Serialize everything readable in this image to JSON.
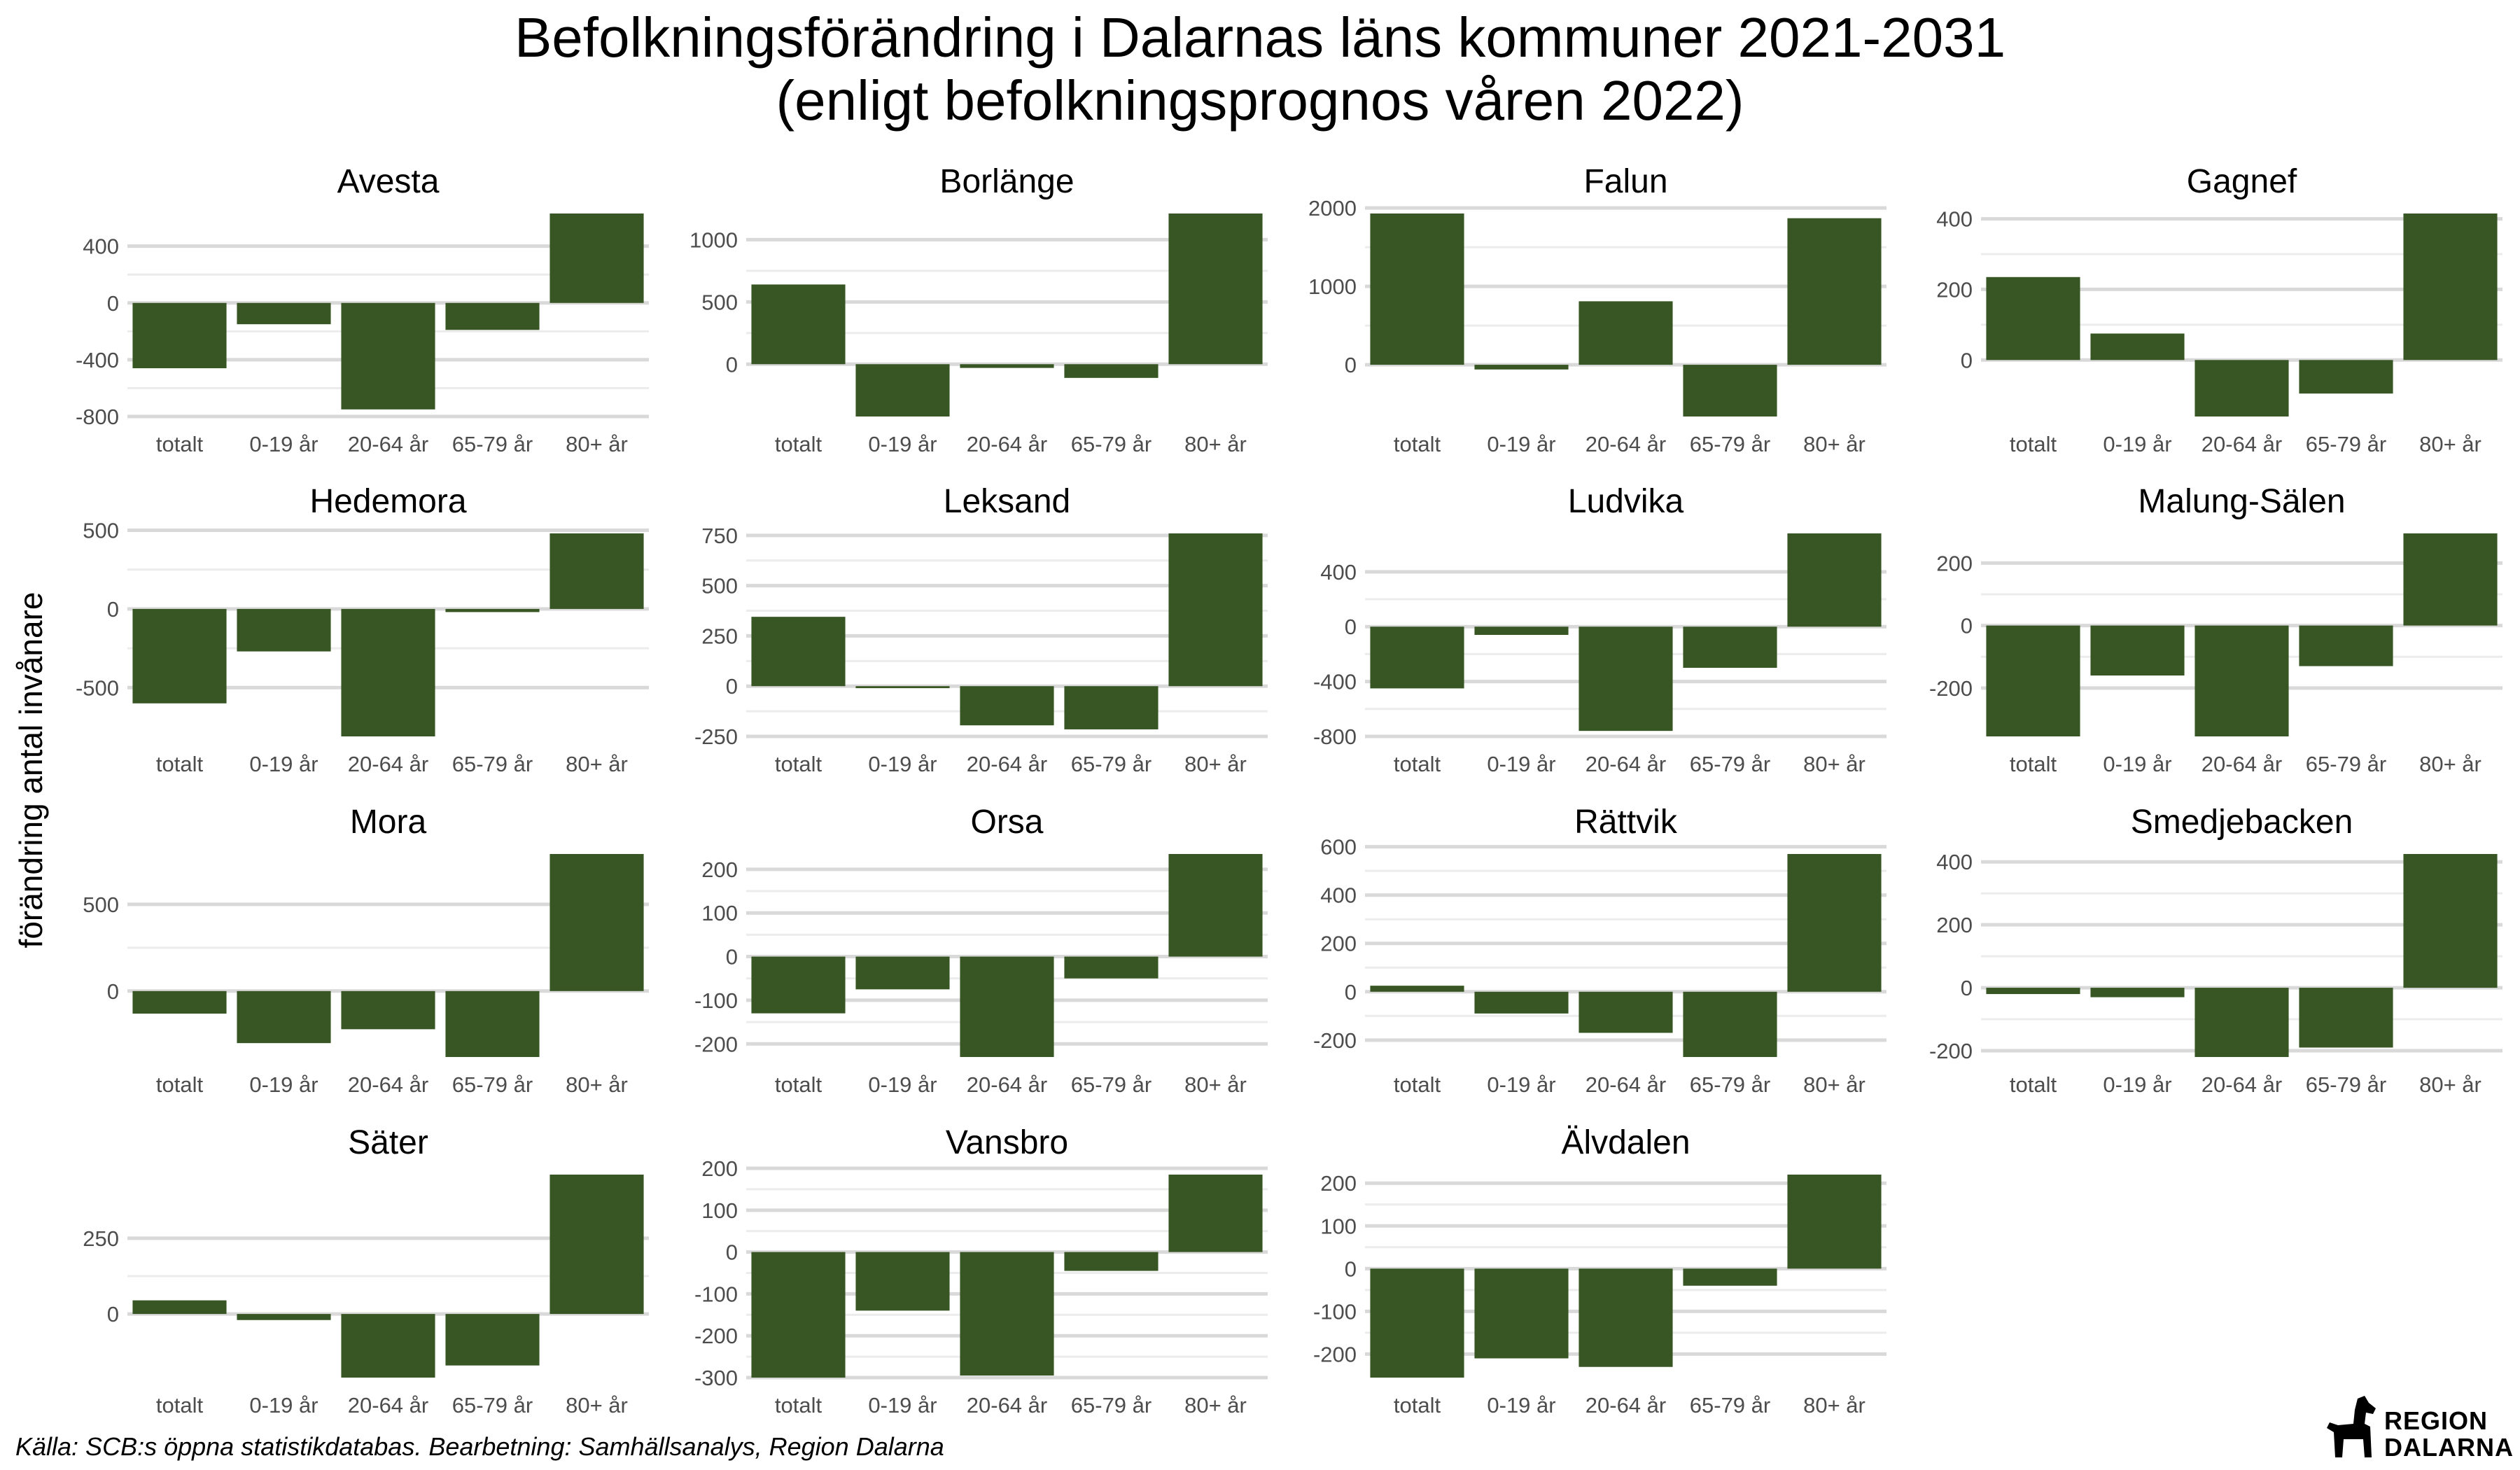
{
  "title": "Befolkningsförändring i Dalarnas läns kommuner 2021-2031",
  "subtitle": "(enligt befolkningsprognos våren 2022)",
  "ylabel": "förändring antal invånare",
  "caption": "Källa: SCB:s öppna statistikdatabas. Bearbetning: Samhällsanalys, Region Dalarna",
  "logo": {
    "line1": "REGION",
    "line2": "DALARNA"
  },
  "colors": {
    "bar": "#375623",
    "grid": "#d9d9d9"
  },
  "chart_data": {
    "type": "bar",
    "categories": [
      "totalt",
      "0-19 år",
      "20-64 år",
      "65-79 år",
      "80+ år"
    ],
    "facets": [
      {
        "name": "Avesta",
        "values": [
          -460,
          -150,
          -750,
          -190,
          630
        ],
        "ylim": [
          -800,
          630
        ],
        "yticks": [
          -800,
          -400,
          0,
          400
        ]
      },
      {
        "name": "Borlänge",
        "values": [
          640,
          -420,
          -30,
          -110,
          1210
        ],
        "ylim": [
          -420,
          1210
        ],
        "yticks": [
          0,
          500,
          1000
        ]
      },
      {
        "name": "Falun",
        "values": [
          1930,
          -60,
          810,
          -660,
          1870
        ],
        "ylim": [
          -660,
          1930
        ],
        "yticks": [
          0,
          1000,
          2000
        ]
      },
      {
        "name": "Gagnef",
        "values": [
          235,
          75,
          -160,
          -95,
          415
        ],
        "ylim": [
          -160,
          415
        ],
        "yticks": [
          0,
          200,
          400
        ]
      },
      {
        "name": "Hedemora",
        "values": [
          -600,
          -270,
          -810,
          -20,
          480
        ],
        "ylim": [
          -810,
          480
        ],
        "yticks": [
          -500,
          0,
          500
        ]
      },
      {
        "name": "Leksand",
        "values": [
          345,
          -10,
          -195,
          -215,
          760
        ],
        "ylim": [
          -250,
          760
        ],
        "yticks": [
          -250,
          0,
          250,
          500,
          750
        ]
      },
      {
        "name": "Ludvika",
        "values": [
          -450,
          -60,
          -760,
          -300,
          680
        ],
        "ylim": [
          -800,
          680
        ],
        "yticks": [
          -800,
          -400,
          0,
          400
        ]
      },
      {
        "name": "Malung-Sälen",
        "values": [
          -355,
          -160,
          -355,
          -130,
          295
        ],
        "ylim": [
          -355,
          295
        ],
        "yticks": [
          -200,
          0,
          200
        ]
      },
      {
        "name": "Mora",
        "values": [
          -130,
          -300,
          -220,
          -380,
          790
        ],
        "ylim": [
          -380,
          790
        ],
        "yticks": [
          0,
          500
        ]
      },
      {
        "name": "Orsa",
        "values": [
          -130,
          -75,
          -230,
          -50,
          235
        ],
        "ylim": [
          -230,
          235
        ],
        "yticks": [
          -200,
          -100,
          0,
          100,
          200
        ]
      },
      {
        "name": "Rättvik",
        "values": [
          25,
          -90,
          -170,
          -270,
          570
        ],
        "ylim": [
          -270,
          570
        ],
        "yticks": [
          -200,
          0,
          200,
          400,
          600
        ]
      },
      {
        "name": "Smedjebacken",
        "values": [
          -20,
          -30,
          -220,
          -190,
          425
        ],
        "ylim": [
          -220,
          425
        ],
        "yticks": [
          -200,
          0,
          200,
          400
        ]
      },
      {
        "name": "Säter",
        "values": [
          45,
          -20,
          -210,
          -170,
          460
        ],
        "ylim": [
          -210,
          460
        ],
        "yticks": [
          0,
          250
        ]
      },
      {
        "name": "Vansbro",
        "values": [
          -300,
          -140,
          -295,
          -45,
          185
        ],
        "ylim": [
          -300,
          185
        ],
        "yticks": [
          -300,
          -200,
          -100,
          0,
          100,
          200
        ]
      },
      {
        "name": "Älvdalen",
        "values": [
          -255,
          -210,
          -230,
          -40,
          220
        ],
        "ylim": [
          -255,
          220
        ],
        "yticks": [
          -200,
          -100,
          0,
          100,
          200
        ]
      }
    ]
  }
}
